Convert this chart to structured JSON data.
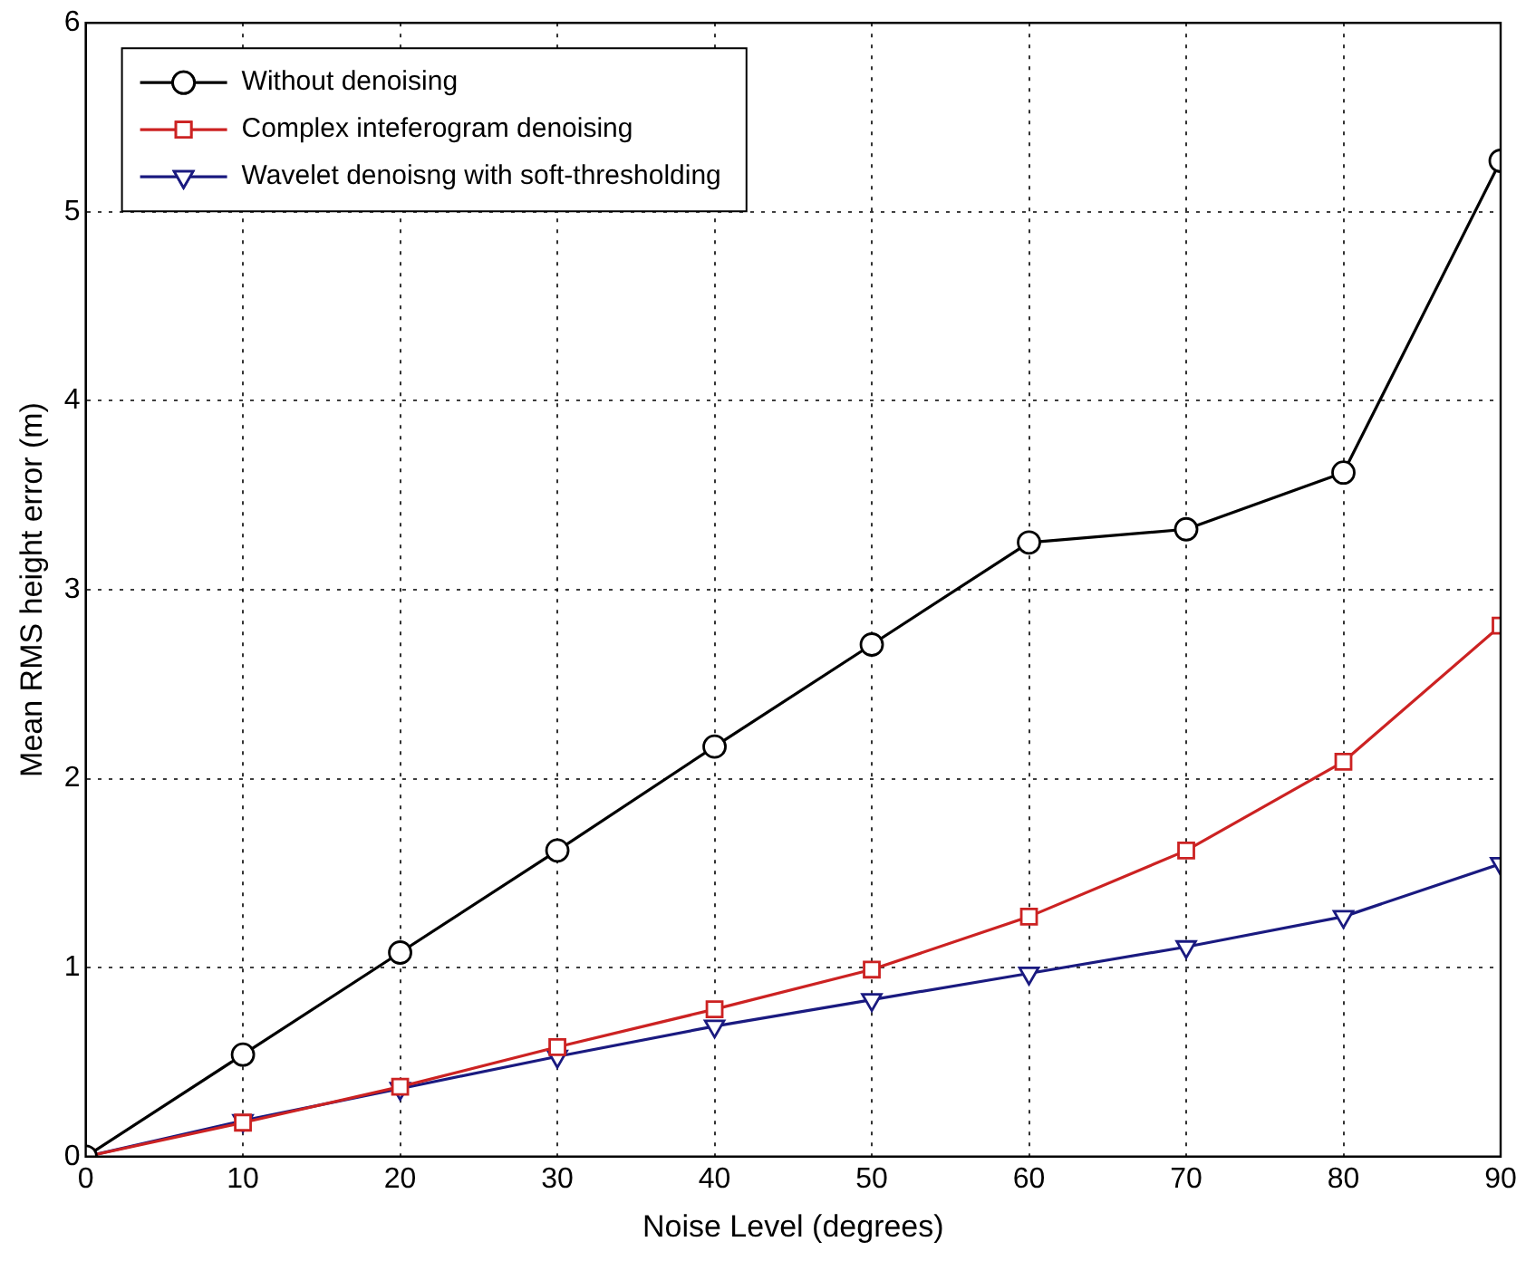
{
  "chart_data": {
    "type": "line",
    "xlabel": "Noise Level (degrees)",
    "ylabel": "Mean RMS height error (m)",
    "x": [
      0,
      10,
      20,
      30,
      40,
      50,
      60,
      70,
      80,
      90
    ],
    "series": [
      {
        "name": "Without denoising",
        "color": "#000000",
        "marker": "circle",
        "values": [
          0,
          0.54,
          1.08,
          1.62,
          2.17,
          2.71,
          3.25,
          3.32,
          3.62,
          5.27
        ]
      },
      {
        "name": "Complex inteferogram denoising",
        "color": "#cc2222",
        "marker": "square",
        "values": [
          0,
          0.18,
          0.37,
          0.58,
          0.78,
          0.99,
          1.27,
          1.62,
          2.09,
          2.81
        ]
      },
      {
        "name": "Wavelet denoisng with soft-thresholding",
        "color": "#1a1a80",
        "marker": "triangle",
        "values": [
          0,
          0.19,
          0.36,
          0.53,
          0.69,
          0.83,
          0.97,
          1.11,
          1.27,
          1.55
        ]
      }
    ],
    "xlim": [
      0,
      90
    ],
    "xticks": [
      0,
      10,
      20,
      30,
      40,
      50,
      60,
      70,
      80,
      90
    ],
    "ylim": [
      0,
      6
    ],
    "yticks": [
      0,
      1,
      2,
      3,
      4,
      5,
      6
    ],
    "grid": true,
    "legend": "top left",
    "line_style": "solid"
  }
}
